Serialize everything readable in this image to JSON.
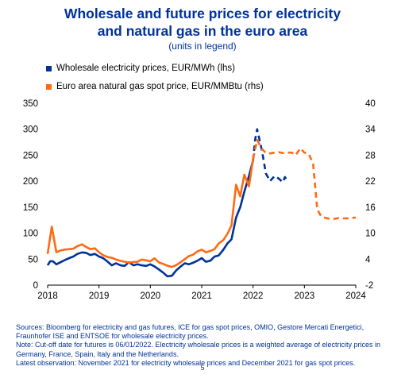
{
  "chart_data": {
    "type": "line",
    "title_lines": [
      "Wholesale and future prices for electricity",
      "and natural gas in the euro area"
    ],
    "subtitle": "(units in legend)",
    "legend_position": "top-left",
    "grid": false,
    "x_range": [
      2018,
      2024
    ],
    "x_ticks": [
      "2018",
      "2019",
      "2020",
      "2021",
      "2022",
      "2023",
      "2024"
    ],
    "y_left": {
      "range": [
        0,
        350
      ],
      "ticks": [
        "0",
        "50",
        "100",
        "150",
        "200",
        "250",
        "300",
        "350"
      ]
    },
    "y_right": {
      "range": [
        -2,
        40
      ],
      "ticks": [
        "-2",
        "4",
        "10",
        "16",
        "22",
        "28",
        "34",
        "40"
      ]
    },
    "series": [
      {
        "name": "Wholesale electricity prices, EUR/MWh (lhs)",
        "color": "#003299",
        "axis": "left",
        "points": [
          [
            2018.0,
            38
          ],
          [
            2018.05,
            46
          ],
          [
            2018.1,
            46
          ],
          [
            2018.17,
            40
          ],
          [
            2018.25,
            44
          ],
          [
            2018.33,
            48
          ],
          [
            2018.42,
            52
          ],
          [
            2018.5,
            55
          ],
          [
            2018.58,
            60
          ],
          [
            2018.67,
            63
          ],
          [
            2018.75,
            62
          ],
          [
            2018.83,
            58
          ],
          [
            2018.92,
            60
          ],
          [
            2019.0,
            55
          ],
          [
            2019.08,
            52
          ],
          [
            2019.17,
            45
          ],
          [
            2019.25,
            38
          ],
          [
            2019.33,
            42
          ],
          [
            2019.42,
            38
          ],
          [
            2019.5,
            37
          ],
          [
            2019.58,
            44
          ],
          [
            2019.67,
            38
          ],
          [
            2019.75,
            40
          ],
          [
            2019.83,
            38
          ],
          [
            2019.92,
            37
          ],
          [
            2020.0,
            40
          ],
          [
            2020.08,
            36
          ],
          [
            2020.17,
            30
          ],
          [
            2020.25,
            24
          ],
          [
            2020.33,
            17
          ],
          [
            2020.42,
            18
          ],
          [
            2020.5,
            28
          ],
          [
            2020.58,
            35
          ],
          [
            2020.67,
            42
          ],
          [
            2020.75,
            40
          ],
          [
            2020.83,
            43
          ],
          [
            2020.92,
            47
          ],
          [
            2021.0,
            52
          ],
          [
            2021.08,
            45
          ],
          [
            2021.17,
            47
          ],
          [
            2021.25,
            55
          ],
          [
            2021.33,
            57
          ],
          [
            2021.42,
            68
          ],
          [
            2021.5,
            80
          ],
          [
            2021.58,
            88
          ],
          [
            2021.67,
            130
          ],
          [
            2021.75,
            150
          ],
          [
            2021.83,
            180
          ],
          [
            2021.92,
            210
          ],
          [
            2022.0,
            240
          ]
        ]
      },
      {
        "name": "Wholesale electricity prices, EUR/MWh (lhs) – futures",
        "color": "#003299",
        "axis": "left",
        "dashed": true,
        "points": [
          [
            2022.0,
            240
          ],
          [
            2022.04,
            280
          ],
          [
            2022.08,
            300
          ],
          [
            2022.17,
            260
          ],
          [
            2022.25,
            215
          ],
          [
            2022.33,
            200
          ],
          [
            2022.42,
            210
          ],
          [
            2022.5,
            205
          ],
          [
            2022.58,
            198
          ],
          [
            2022.62,
            208
          ],
          [
            2022.67,
            200
          ]
        ]
      },
      {
        "name": "Euro area natural gas spot price, EUR/MMBtu (rhs)",
        "color": "#ff6a13",
        "axis": "right",
        "points": [
          [
            2018.0,
            5.2
          ],
          [
            2018.08,
            11.5
          ],
          [
            2018.17,
            5.6
          ],
          [
            2018.25,
            6.0
          ],
          [
            2018.33,
            6.2
          ],
          [
            2018.42,
            6.3
          ],
          [
            2018.5,
            6.4
          ],
          [
            2018.58,
            7.0
          ],
          [
            2018.67,
            7.4
          ],
          [
            2018.75,
            6.8
          ],
          [
            2018.83,
            6.3
          ],
          [
            2018.92,
            6.5
          ],
          [
            2019.0,
            5.6
          ],
          [
            2019.08,
            4.9
          ],
          [
            2019.17,
            4.5
          ],
          [
            2019.25,
            4.3
          ],
          [
            2019.33,
            3.9
          ],
          [
            2019.42,
            3.6
          ],
          [
            2019.5,
            3.4
          ],
          [
            2019.58,
            3.2
          ],
          [
            2019.67,
            3.3
          ],
          [
            2019.75,
            3.4
          ],
          [
            2019.83,
            3.9
          ],
          [
            2019.92,
            3.7
          ],
          [
            2020.0,
            3.5
          ],
          [
            2020.08,
            4.2
          ],
          [
            2020.17,
            3.2
          ],
          [
            2020.25,
            2.9
          ],
          [
            2020.33,
            2.5
          ],
          [
            2020.42,
            2.2
          ],
          [
            2020.5,
            2.6
          ],
          [
            2020.58,
            3.2
          ],
          [
            2020.67,
            4.0
          ],
          [
            2020.75,
            4.7
          ],
          [
            2020.83,
            5.0
          ],
          [
            2020.92,
            5.8
          ],
          [
            2021.0,
            6.2
          ],
          [
            2021.08,
            5.6
          ],
          [
            2021.17,
            5.9
          ],
          [
            2021.25,
            6.3
          ],
          [
            2021.33,
            7.6
          ],
          [
            2021.42,
            8.4
          ],
          [
            2021.5,
            9.8
          ],
          [
            2021.58,
            11.8
          ],
          [
            2021.67,
            21.2
          ],
          [
            2021.75,
            18.5
          ],
          [
            2021.83,
            23.5
          ],
          [
            2021.92,
            20.8
          ],
          [
            2022.0,
            27.2
          ]
        ]
      },
      {
        "name": "Euro area natural gas spot price, EUR/MMBtu (rhs) – futures",
        "color": "#ff6a13",
        "axis": "right",
        "dashed": true,
        "points": [
          [
            2022.0,
            27.2
          ],
          [
            2022.08,
            31.5
          ],
          [
            2022.17,
            29.5
          ],
          [
            2022.25,
            28.5
          ],
          [
            2022.33,
            28.4
          ],
          [
            2022.42,
            28.6
          ],
          [
            2022.5,
            28.7
          ],
          [
            2022.58,
            28.5
          ],
          [
            2022.67,
            28.6
          ],
          [
            2022.75,
            28.6
          ],
          [
            2022.83,
            28.0
          ],
          [
            2022.92,
            29.6
          ],
          [
            2023.0,
            28.6
          ],
          [
            2023.08,
            28.4
          ],
          [
            2023.17,
            26.0
          ],
          [
            2023.25,
            15.5
          ],
          [
            2023.33,
            13.8
          ],
          [
            2023.42,
            13.5
          ],
          [
            2023.5,
            13.3
          ],
          [
            2023.58,
            13.3
          ],
          [
            2023.67,
            13.5
          ],
          [
            2023.75,
            13.4
          ],
          [
            2023.83,
            13.4
          ],
          [
            2023.92,
            13.5
          ],
          [
            2024.0,
            13.6
          ]
        ]
      }
    ]
  },
  "legend": [
    {
      "label": "Wholesale electricity prices, EUR/MWh (lhs)",
      "color": "#003299"
    },
    {
      "label": "Euro area natural gas spot price, EUR/MMBtu (rhs)",
      "color": "#ff6a13"
    }
  ],
  "footnotes": [
    "Sources: Bloomberg for electricity and gas futures, ICE for gas spot prices, OMIO, Gestore Mercati Energetici,",
    "Fraunhofer ISE and ENTSOE for wholesale electricity prices.",
    "Note: Cut-off date for futures is 06/01/2022. Electricity wholesale prices is a weighted average of electricity prices in",
    "Germany, France, Spain, Italy and the Netherlands.",
    "Latest observation: November 2021 for electricity wholesale prices and December 2021 for gas spot prices."
  ],
  "page_number": "5"
}
